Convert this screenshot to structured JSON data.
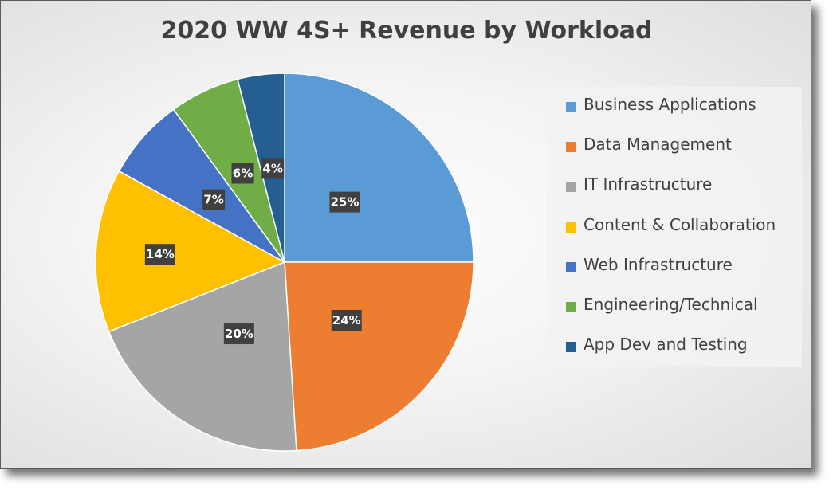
{
  "chart_data": {
    "type": "pie",
    "title": "2020 WW 4S+ Revenue by Workload",
    "categories": [
      "Business Applications",
      "Data Management",
      "IT Infrastructure",
      "Content & Collaboration",
      "Web Infrastructure",
      "Engineering/Technical",
      "App Dev and Testing"
    ],
    "values": [
      25,
      24,
      20,
      14,
      7,
      6,
      4
    ],
    "data_labels": [
      "25%",
      "24%",
      "20%",
      "14%",
      "7%",
      "6%",
      "4%"
    ],
    "colors": [
      "#5b9bd5",
      "#ed7d31",
      "#a5a5a5",
      "#ffc000",
      "#4472c4",
      "#70ad47",
      "#255e91"
    ],
    "legend_position": "right",
    "start_angle_deg": 0,
    "direction": "clockwise"
  }
}
